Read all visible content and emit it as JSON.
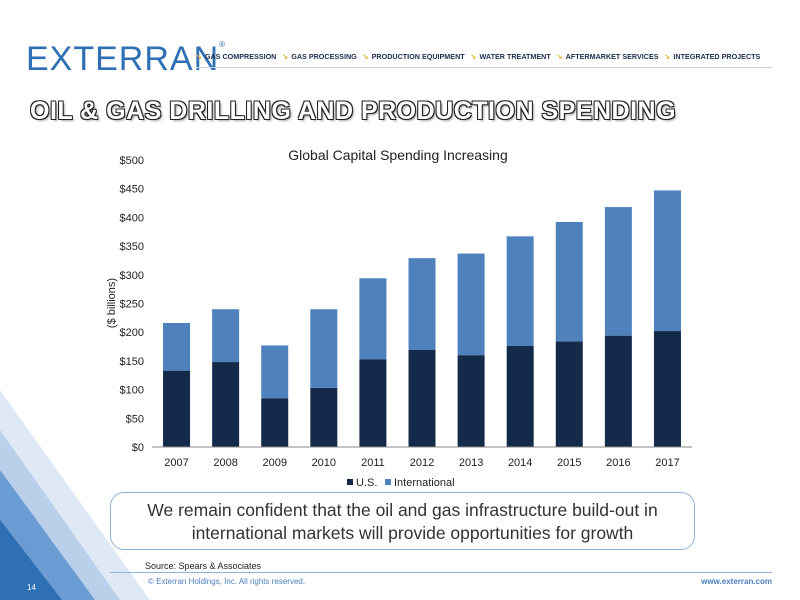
{
  "header": {
    "logo_text": "EXTERRAN",
    "logo_mark": "®",
    "nav": [
      "GAS COMPRESSION",
      "GAS PROCESSING",
      "PRODUCTION EQUIPMENT",
      "WATER TREATMENT",
      "AFTERMARKET SERVICES",
      "INTEGRATED PROJECTS"
    ]
  },
  "page_title": "OIL & GAS DRILLING AND PRODUCTION SPENDING",
  "colors": {
    "us": "#132a4b",
    "international": "#4f81bd",
    "accent": "#f0a91e",
    "brand": "#2f6fb4"
  },
  "chart_data": {
    "type": "bar",
    "stacked": true,
    "title": "Global Capital Spending Increasing",
    "xlabel": "",
    "ylabel": "($ billions)",
    "ylim": [
      0,
      500
    ],
    "yticks": [
      "$0",
      "$50",
      "$100",
      "$150",
      "$200",
      "$250",
      "$300",
      "$350",
      "$400",
      "$450",
      "$500"
    ],
    "ytick_values": [
      0,
      50,
      100,
      150,
      200,
      250,
      300,
      350,
      400,
      450,
      500
    ],
    "categories": [
      "2007",
      "2008",
      "2009",
      "2010",
      "2011",
      "2012",
      "2013",
      "2014",
      "2015",
      "2016",
      "2017"
    ],
    "series": [
      {
        "name": "U.S.",
        "values": [
          133,
          148,
          85,
          103,
          153,
          169,
          160,
          176,
          184,
          194,
          202
        ]
      },
      {
        "name": "International",
        "values": [
          83,
          92,
          92,
          137,
          141,
          160,
          177,
          191,
          208,
          224,
          245
        ]
      }
    ],
    "legend_position": "bottom",
    "grid": false
  },
  "callout": {
    "line1": "We remain confident that the oil and gas infrastructure build-out in",
    "line2": "international markets will provide opportunities for growth"
  },
  "footer": {
    "source": "Source: Spears & Associates",
    "copyright": "© Exterran Holdings, Inc. All rights reserved.",
    "website": "www.exterran.com",
    "page_number": "14"
  }
}
